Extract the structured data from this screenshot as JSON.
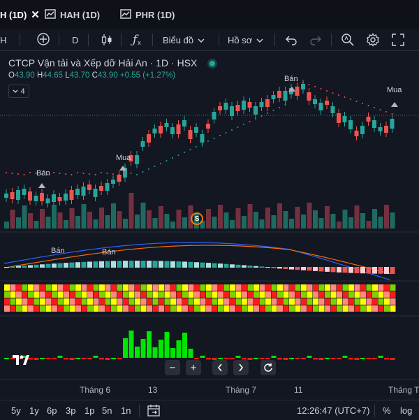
{
  "tabs": [
    {
      "label": "H (1D)",
      "active": true
    },
    {
      "label": "HAH (1D)",
      "active": false
    },
    {
      "label": "PHR (1D)",
      "active": false
    }
  ],
  "toolbar": {
    "symbol_fragment": "H",
    "interval": "D",
    "chart_type_label": "Biểu đồ",
    "profile_label": "Hồ sơ"
  },
  "legend": {
    "title": "CTCP Vận tải và Xếp dỡ Hải An · 1D · HSX",
    "open_label": "O",
    "open": "43.90",
    "high_label": "H",
    "high": "44.65",
    "low_label": "L",
    "low": "43.70",
    "close_label": "C",
    "close": "43.90",
    "change": "+0.55 (+1.27%)",
    "indicator_count": "4"
  },
  "signals": {
    "sell": "Bán",
    "buy": "Mua",
    "s_marker": "S"
  },
  "colors": {
    "background": "#131722",
    "up": "#26a69a",
    "down": "#ef5350",
    "bright_green": "#00e600",
    "bright_red": "#ff1a1a"
  },
  "xaxis": {
    "labels": [
      "Tháng 6",
      "13",
      "Tháng 7",
      "11",
      "Tháng Tá"
    ]
  },
  "bottom": {
    "ranges": [
      "5y",
      "1y",
      "6p",
      "3p",
      "1p",
      "5n",
      "1n"
    ],
    "time": "12:26:47 (UTC+7)",
    "percent": "%",
    "log": "log"
  }
}
